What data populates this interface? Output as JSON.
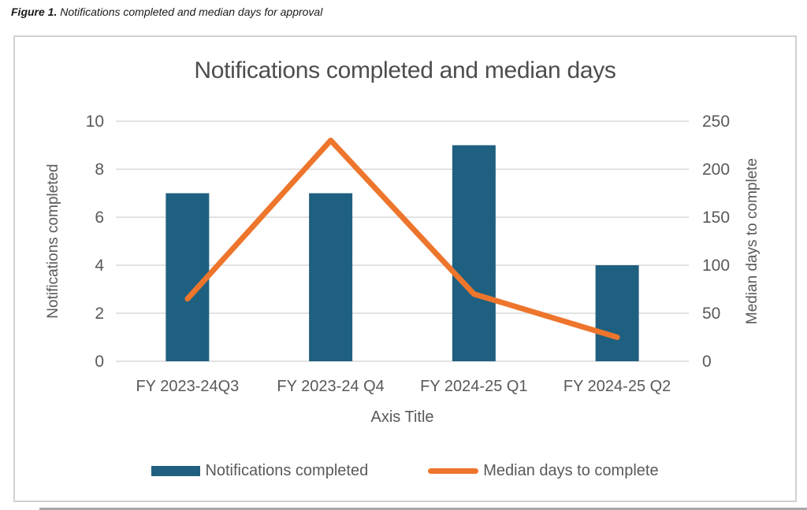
{
  "caption": {
    "prefix": "Figure 1.",
    "text": " Notifications completed and median days for approval"
  },
  "chart_data": {
    "type": "bar+line combo",
    "title": "Notifications completed and median days",
    "xlabel": "Axis Title",
    "categories": [
      "FY 2023-24Q3",
      "FY 2023-24 Q4",
      "FY 2024-25 Q1",
      "FY 2024-25 Q2"
    ],
    "series": [
      {
        "name": "Notifications completed",
        "type": "bar",
        "axis": "left",
        "color": "#1F6080",
        "values": [
          7,
          7,
          9,
          4
        ]
      },
      {
        "name": "Median days to complete",
        "type": "line",
        "axis": "right",
        "color": "#ED752C",
        "values": [
          65,
          230,
          70,
          25
        ]
      }
    ],
    "left_axis": {
      "label": "Notifications completed",
      "min": 0,
      "max": 10,
      "step": 2,
      "ticks": [
        0,
        2,
        4,
        6,
        8,
        10
      ]
    },
    "right_axis": {
      "label": "Median days to complete",
      "min": 0,
      "max": 250,
      "step": 50,
      "ticks": [
        0,
        50,
        100,
        150,
        200,
        250
      ]
    },
    "grid": true,
    "gridline_color": "#d8d8d8",
    "text_color": "#595959",
    "legend_position": "bottom"
  }
}
